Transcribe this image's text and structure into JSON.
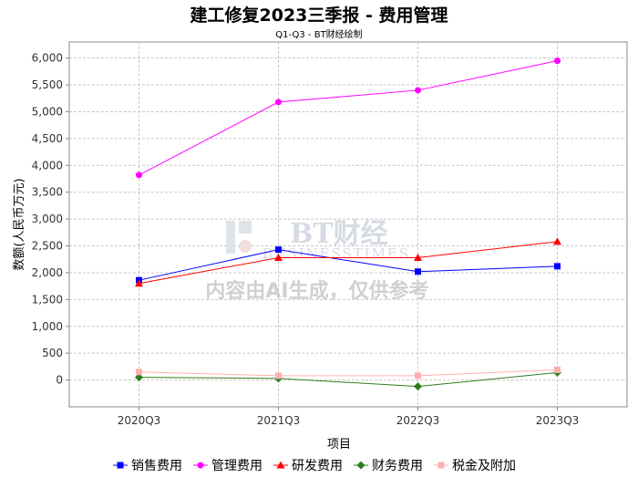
{
  "chart_data": {
    "type": "line",
    "title": "建工修复2023三季报 - 费用管理",
    "subtitle": "Q1-Q3 - BT财经绘制",
    "xlabel": "项目",
    "ylabel": "数额(人民币万元)",
    "categories": [
      "2020Q3",
      "2021Q3",
      "2022Q3",
      "2023Q3"
    ],
    "ylim": [
      -500,
      6300
    ],
    "yticks": [
      0,
      500,
      1000,
      1500,
      2000,
      2500,
      3000,
      3500,
      4000,
      4500,
      5000,
      5500,
      6000
    ],
    "ytick_labels": [
      "0",
      "500",
      "1,000",
      "1,500",
      "2,000",
      "2,500",
      "3,000",
      "3,500",
      "4,000",
      "4,500",
      "5,000",
      "5,500",
      "6,000"
    ],
    "grid": true,
    "legend_position": "bottom",
    "series": [
      {
        "name": "销售费用",
        "color": "#0000ff",
        "marker": "square",
        "values": [
          1860,
          2430,
          2020,
          2120
        ]
      },
      {
        "name": "管理费用",
        "color": "#ff00ff",
        "marker": "circle",
        "values": [
          3820,
          5180,
          5400,
          5950
        ]
      },
      {
        "name": "研发费用",
        "color": "#ff0000",
        "marker": "triangle",
        "values": [
          1800,
          2280,
          2280,
          2580
        ]
      },
      {
        "name": "财务费用",
        "color": "#2e7d1e",
        "marker": "diamond",
        "values": [
          50,
          30,
          -120,
          140
        ]
      },
      {
        "name": "税金及附加",
        "color": "#ffb0b0",
        "marker": "square",
        "values": [
          150,
          80,
          80,
          190
        ]
      }
    ]
  },
  "watermark": {
    "logo_text": "BT财经",
    "logo_subtext": "BUSINESSTIMES",
    "notice": "内容由AI生成，仅供参考"
  }
}
